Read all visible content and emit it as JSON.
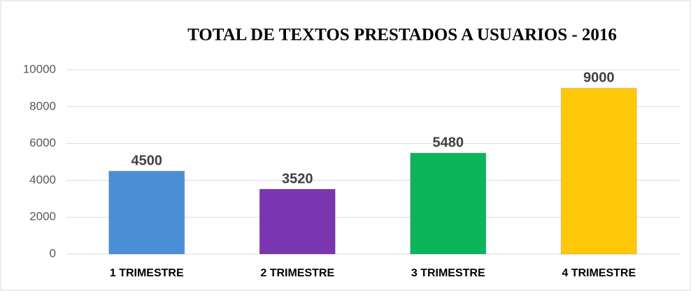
{
  "chart_data": {
    "type": "bar",
    "title": "TOTAL DE TEXTOS PRESTADOS A USUARIOS - 2016",
    "categories": [
      "1 TRIMESTRE",
      "2 TRIMESTRE",
      "3 TRIMESTRE",
      "4 TRIMESTRE"
    ],
    "values": [
      4500,
      3520,
      5480,
      9000
    ],
    "colors": [
      "#4a8fd6",
      "#7a35b0",
      "#0cb55a",
      "#ffc90a"
    ],
    "ylim": [
      0,
      10000
    ],
    "yticks": [
      0,
      2000,
      4000,
      6000,
      8000,
      10000
    ],
    "grid": true
  }
}
